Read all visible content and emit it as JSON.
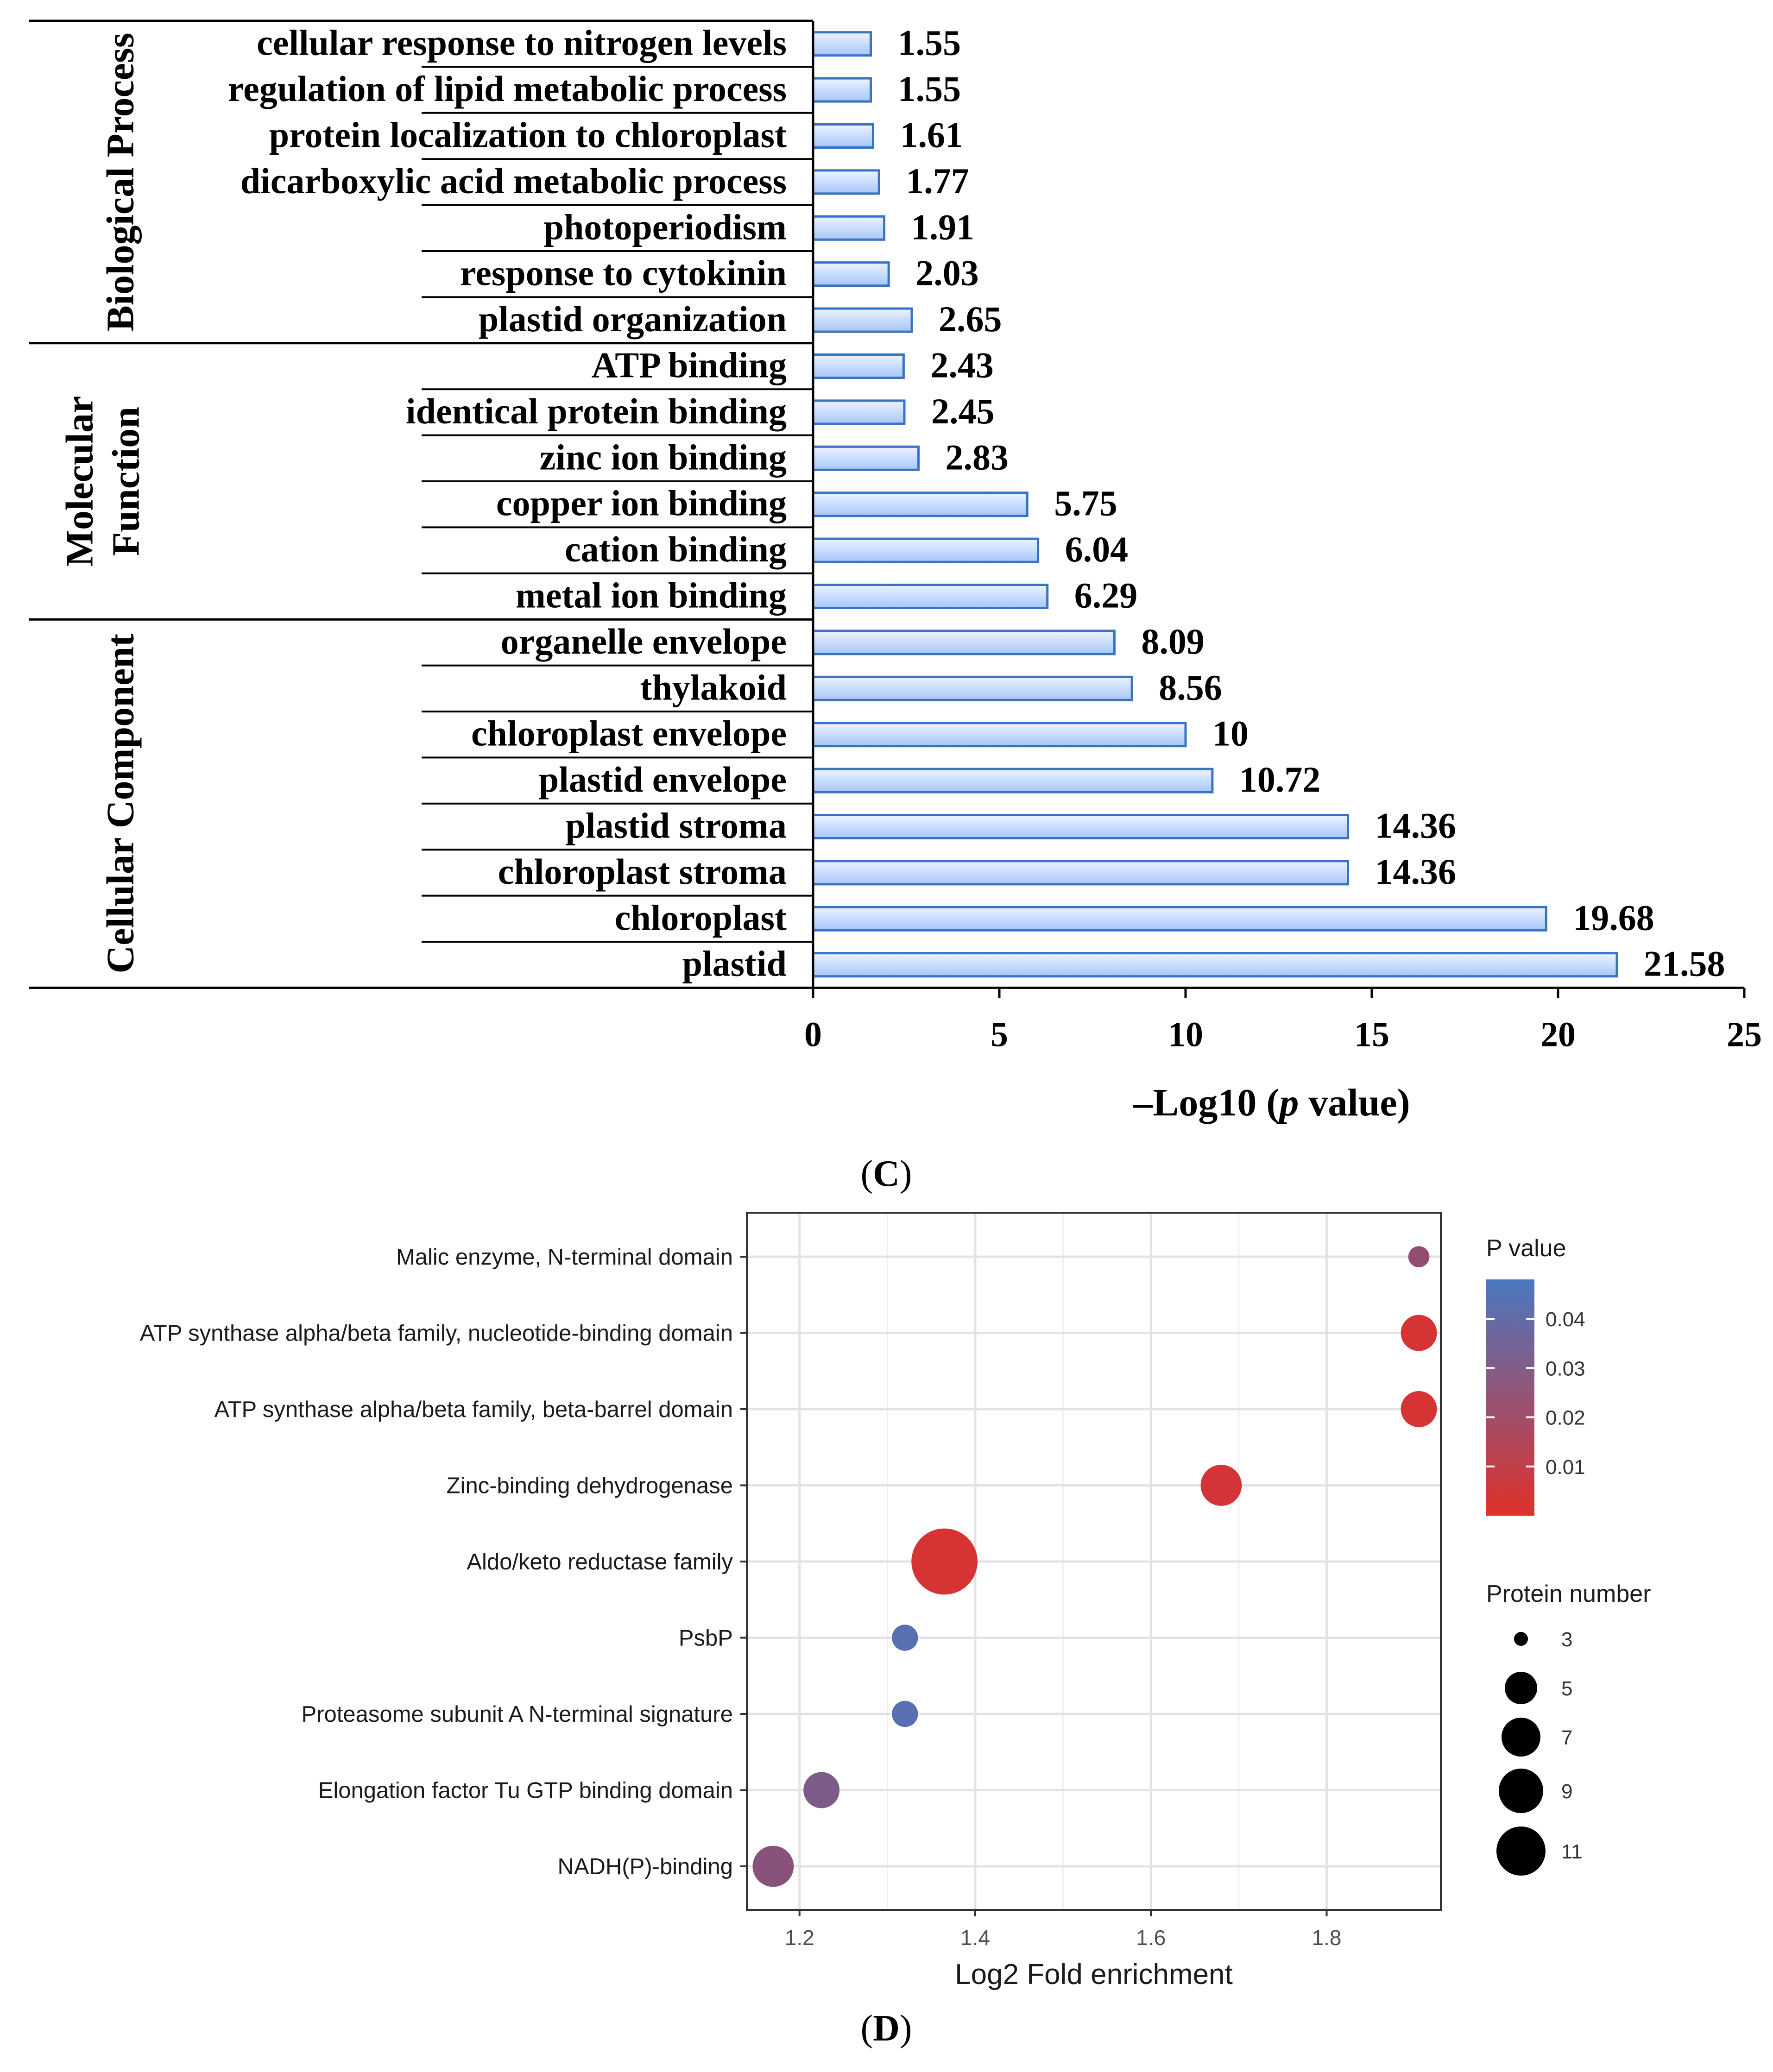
{
  "chart_data": [
    {
      "id": "C",
      "type": "bar",
      "orientation": "horizontal",
      "panel_label": "(C)",
      "panel_label_letter": "C",
      "xlabel_prefix": "–Log10 (",
      "xlabel_italic": "p",
      "xlabel_suffix": " value)",
      "xlim": [
        0,
        25
      ],
      "xticks": [
        0,
        5,
        10,
        15,
        20,
        25
      ],
      "bar_color": "#c9ddff",
      "bar_edge": "#3a72c4",
      "groups": [
        {
          "name": "Biological Process",
          "label_lines": [
            "Biological Process"
          ],
          "categories": [
            "cellular response to nitrogen levels",
            "regulation of lipid metabolic process",
            "protein localization to chloroplast",
            "dicarboxylic acid metabolic process",
            "photoperiodism",
            "response to cytokinin",
            "plastid organization"
          ],
          "values": [
            1.55,
            1.55,
            1.61,
            1.77,
            1.91,
            2.03,
            2.65
          ]
        },
        {
          "name": "Molecular Function",
          "label_lines": [
            "Molecular",
            "Function"
          ],
          "categories": [
            "ATP binding",
            "identical protein binding",
            "zinc ion binding",
            "copper ion binding",
            "cation binding",
            "metal ion binding"
          ],
          "values": [
            2.43,
            2.45,
            2.83,
            5.75,
            6.04,
            6.29
          ]
        },
        {
          "name": "Cellular Component",
          "label_lines": [
            "Cellular Component"
          ],
          "categories": [
            "organelle envelope",
            "thylakoid",
            "chloroplast envelope",
            "plastid envelope",
            "plastid stroma",
            "chloroplast stroma",
            "chloroplast",
            "plastid"
          ],
          "values": [
            8.09,
            8.56,
            10,
            10.72,
            14.36,
            14.36,
            19.68,
            21.58
          ]
        }
      ]
    },
    {
      "id": "D",
      "type": "scatter",
      "subtype": "bubble",
      "panel_label": "(D)",
      "panel_label_letter": "D",
      "xlabel": "Log2 Fold enrichment",
      "xlim": [
        1.14,
        1.93
      ],
      "xticks": [
        1.2,
        1.4,
        1.6,
        1.8
      ],
      "xtick_labels": [
        "1.2",
        "1.4",
        "1.6",
        "1.8"
      ],
      "grid": true,
      "categories": [
        "Malic enzyme, N-terminal domain",
        "ATP synthase alpha/beta family, nucleotide-binding domain",
        "ATP synthase alpha/beta family, beta-barrel domain",
        "Zinc-binding dehydrogenase",
        "Aldo/keto reductase family",
        "PsbP",
        "Proteasome subunit A N-terminal signature",
        "Elongation factor Tu GTP binding domain",
        "NADH(P)-binding"
      ],
      "x": [
        1.905,
        1.905,
        1.905,
        1.68,
        1.365,
        1.32,
        1.32,
        1.225,
        1.17
      ],
      "p_value": [
        0.022,
        0.003,
        0.003,
        0.004,
        0.003,
        0.043,
        0.043,
        0.03,
        0.025
      ],
      "protein_number": [
        2,
        5,
        5,
        6,
        11,
        3,
        3,
        5,
        6
      ],
      "color_legend": {
        "title": "P value",
        "range": [
          0,
          0.048
        ],
        "ticks": [
          0.04,
          0.03,
          0.02,
          0.01
        ],
        "tick_labels": [
          "0.04",
          "0.03",
          "0.02",
          "0.01"
        ],
        "colors": [
          "#e0302a",
          "#4a78c0"
        ]
      },
      "size_legend": {
        "title": "Protein number",
        "values": [
          3,
          5,
          7,
          9,
          11
        ],
        "labels": [
          "3",
          "5",
          "7",
          "9",
          "11"
        ]
      }
    }
  ]
}
